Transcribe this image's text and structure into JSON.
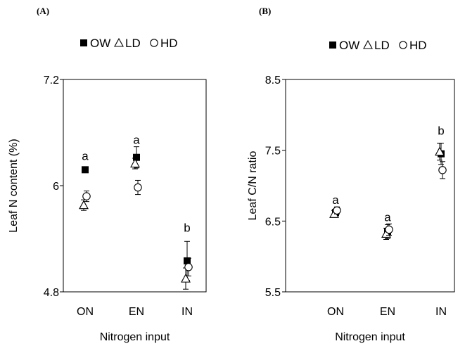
{
  "chart_data": [
    {
      "type": "scatter",
      "panel_label": "(A)",
      "xlabel": "Nitrogen input",
      "ylabel": "Leaf N content (%)",
      "categories": [
        "ON",
        "EN",
        "IN"
      ],
      "ylim": [
        4.8,
        7.2
      ],
      "yticks": [
        "4.8",
        "6",
        "7.2"
      ],
      "legend": [
        "OW",
        "LD",
        "HD"
      ],
      "series": [
        {
          "name": "OW",
          "marker": "filled-square",
          "values": [
            6.18,
            6.32,
            5.15
          ],
          "errors": [
            0.0,
            0.12,
            0.22
          ]
        },
        {
          "name": "LD",
          "marker": "open-triangle",
          "values": [
            5.78,
            6.25,
            4.95
          ],
          "errors": [
            0.06,
            0.06,
            0.12
          ]
        },
        {
          "name": "HD",
          "marker": "open-circle",
          "values": [
            5.88,
            5.98,
            5.08
          ],
          "errors": [
            0.06,
            0.08,
            0.1
          ]
        }
      ],
      "significance": [
        "a",
        "a",
        "b"
      ]
    },
    {
      "type": "scatter",
      "panel_label": "(B)",
      "xlabel": "Nitrogen input",
      "ylabel": "Leaf C/N ratio",
      "categories": [
        "ON",
        "EN",
        "IN"
      ],
      "ylim": [
        5.5,
        8.5
      ],
      "yticks": [
        "5.5",
        "6.5",
        "7.5",
        "8.5"
      ],
      "legend": [
        "OW",
        "LD",
        "HD"
      ],
      "series": [
        {
          "name": "OW",
          "marker": "filled-square",
          "values": [
            6.62,
            6.35,
            7.45
          ],
          "errors": [
            0.05,
            0.1,
            0.15
          ]
        },
        {
          "name": "LD",
          "marker": "open-triangle",
          "values": [
            6.6,
            6.32,
            7.48
          ],
          "errors": [
            0.05,
            0.08,
            0.12
          ]
        },
        {
          "name": "HD",
          "marker": "open-circle",
          "values": [
            6.65,
            6.38,
            7.22
          ],
          "errors": [
            0.05,
            0.08,
            0.12
          ]
        }
      ],
      "significance": [
        "a",
        "a",
        "b"
      ]
    }
  ]
}
